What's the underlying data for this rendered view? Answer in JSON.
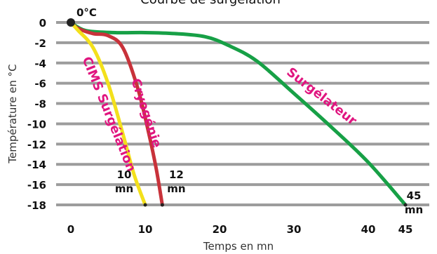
{
  "chart_data": {
    "type": "line",
    "title": "",
    "top_caption": "Courbe de surgélation",
    "xlabel": "Temps en mn",
    "ylabel": "Température en °C",
    "xlim": [
      0,
      45
    ],
    "ylim": [
      -18,
      0
    ],
    "xticks": [
      0,
      10,
      20,
      30,
      40,
      45
    ],
    "yticks": [
      0,
      -2,
      -4,
      -6,
      -8,
      -10,
      -12,
      -14,
      -16,
      -18
    ],
    "grid": "horizontal",
    "colors": {
      "grid": "#9c9c9c",
      "yellow": "#f3e01b",
      "red": "#c8323a",
      "green": "#17a046",
      "label_magenta": "#e0157f"
    },
    "series": [
      {
        "name": "CIMS Surgélation",
        "color": "#f3e01b",
        "points": [
          [
            0,
            0
          ],
          [
            1,
            -0.8
          ],
          [
            3,
            -2.5
          ],
          [
            5,
            -6
          ],
          [
            7,
            -11
          ],
          [
            8.5,
            -15
          ],
          [
            10,
            -18
          ]
        ]
      },
      {
        "name": "Cryogénie",
        "color": "#c8323a",
        "points": [
          [
            0,
            0
          ],
          [
            1,
            -0.6
          ],
          [
            3,
            -1.1
          ],
          [
            5,
            -1.3
          ],
          [
            7,
            -2.5
          ],
          [
            9,
            -6.5
          ],
          [
            10.5,
            -11
          ],
          [
            11.5,
            -14.5
          ],
          [
            12.3,
            -18
          ]
        ]
      },
      {
        "name": "Surgélateur",
        "color": "#17a046",
        "points": [
          [
            0,
            0
          ],
          [
            2,
            -0.8
          ],
          [
            6,
            -1
          ],
          [
            10,
            -1
          ],
          [
            14,
            -1.1
          ],
          [
            18,
            -1.4
          ],
          [
            21,
            -2.2
          ],
          [
            25,
            -3.8
          ],
          [
            30,
            -7
          ],
          [
            35,
            -10.3
          ],
          [
            40,
            -13.8
          ],
          [
            45,
            -18
          ]
        ]
      }
    ],
    "annotations": [
      {
        "text": "0°C",
        "x": 0,
        "y": 0
      },
      {
        "text": "10",
        "text2": "mn",
        "x": 10,
        "y": -18
      },
      {
        "text": "12",
        "text2": "mn",
        "x": 12.3,
        "y": -18
      },
      {
        "text": "45",
        "text2": "mn",
        "x": 45,
        "y": -18
      }
    ]
  }
}
